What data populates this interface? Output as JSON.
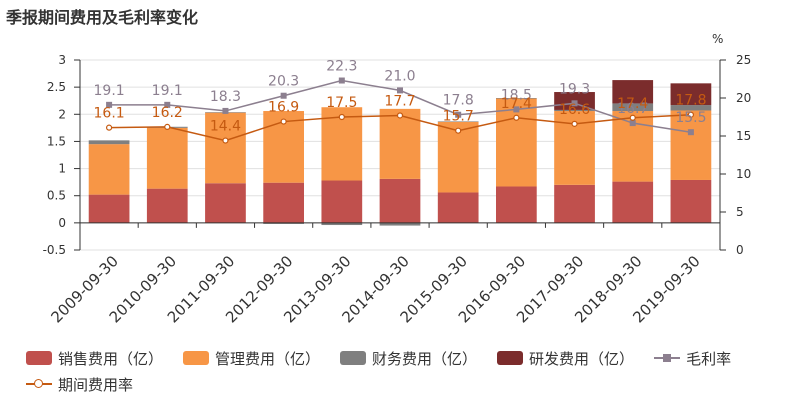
{
  "title": "季报期间费用及毛利率变化",
  "chart_data": {
    "type": "bar",
    "categories": [
      "2009-09-30",
      "2010-09-30",
      "2011-09-30",
      "2012-09-30",
      "2013-09-30",
      "2014-09-30",
      "2015-09-30",
      "2016-09-30",
      "2017-09-30",
      "2018-09-30",
      "2019-09-30"
    ],
    "series": [
      {
        "name": "销售费用（亿）",
        "type": "bar",
        "axis": "left",
        "color": "#c0504d",
        "values": [
          0.52,
          0.63,
          0.73,
          0.74,
          0.78,
          0.81,
          0.56,
          0.67,
          0.7,
          0.76,
          0.79
        ]
      },
      {
        "name": "管理费用（亿）",
        "type": "bar",
        "axis": "left",
        "color": "#f79646",
        "values": [
          0.93,
          1.12,
          1.3,
          1.32,
          1.35,
          1.29,
          1.3,
          1.62,
          1.36,
          1.3,
          1.28
        ]
      },
      {
        "name": "财务费用（亿）",
        "type": "bar",
        "axis": "left",
        "color": "#7f7f7f",
        "values": [
          0.07,
          0.02,
          0.01,
          -0.02,
          -0.04,
          -0.05,
          0.01,
          0.01,
          0.02,
          0.14,
          0.1
        ]
      },
      {
        "name": "研发费用（亿）",
        "type": "bar",
        "axis": "left",
        "color": "#7b2c2c",
        "values": [
          0,
          0,
          0,
          0,
          0,
          0,
          0,
          0,
          0.33,
          0.43,
          0.4
        ]
      },
      {
        "name": "毛利率",
        "type": "line",
        "axis": "right",
        "color": "#8c7f8f",
        "marker": "square",
        "values": [
          19.1,
          19.1,
          18.3,
          20.3,
          22.3,
          21.0,
          17.8,
          18.5,
          19.3,
          16.7,
          15.5
        ],
        "labels": [
          "19.1",
          "19.1",
          "18.3",
          "20.3",
          "22.3",
          "21.0",
          "17.8",
          "18.5",
          "19.3",
          "16.7",
          "15.5"
        ]
      },
      {
        "name": "期间费用率",
        "type": "line",
        "axis": "right",
        "color": "#c55a11",
        "marker": "circle",
        "values": [
          16.1,
          16.2,
          14.4,
          16.9,
          17.5,
          17.7,
          15.7,
          17.4,
          16.6,
          17.4,
          17.8
        ],
        "labels": [
          "16.1",
          "16.2",
          "14.4",
          "16.9",
          "17.5",
          "17.7",
          "15.7",
          "17.4",
          "16.6",
          "17.4",
          "17.8"
        ]
      }
    ],
    "left_axis": {
      "min": -0.5,
      "max": 3,
      "ticks": [
        "-0.5",
        "0",
        "0.5",
        "1",
        "1.5",
        "2",
        "2.5",
        "3"
      ]
    },
    "right_axis": {
      "min": 0,
      "max": 25,
      "unit": "%",
      "ticks": [
        "0",
        "5",
        "10",
        "15",
        "20",
        "25"
      ]
    },
    "legend": "bottom"
  }
}
